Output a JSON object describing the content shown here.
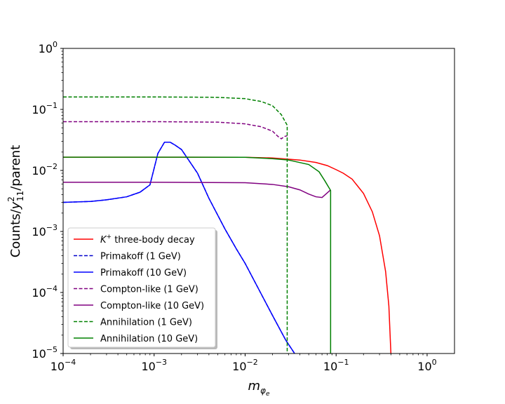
{
  "chart_data": {
    "type": "line",
    "xscale": "log",
    "yscale": "log",
    "xlim": [
      0.0001,
      2
    ],
    "ylim": [
      1e-05,
      1
    ],
    "xlabel": "m_{φ_e}",
    "ylabel": "Counts/y²₁₁/parent",
    "x_ticks": [
      {
        "value": 0.0001,
        "base": "10",
        "exp": "−4"
      },
      {
        "value": 0.001,
        "base": "10",
        "exp": "−3"
      },
      {
        "value": 0.01,
        "base": "10",
        "exp": "−2"
      },
      {
        "value": 0.1,
        "base": "10",
        "exp": "−1"
      },
      {
        "value": 1,
        "base": "10",
        "exp": "0"
      }
    ],
    "y_ticks": [
      {
        "value": 1e-05,
        "base": "10",
        "exp": "−5"
      },
      {
        "value": 0.0001,
        "base": "10",
        "exp": "−4"
      },
      {
        "value": 0.001,
        "base": "10",
        "exp": "−3"
      },
      {
        "value": 0.01,
        "base": "10",
        "exp": "−2"
      },
      {
        "value": 0.1,
        "base": "10",
        "exp": "−1"
      },
      {
        "value": 1,
        "base": "10",
        "exp": "0"
      }
    ],
    "grid": false,
    "legend_position": "lower-left",
    "series": [
      {
        "name": "K⁺ three-body decay",
        "name_parts": [
          "K",
          "+",
          " three-body decay"
        ],
        "color": "#ff0000",
        "dash": "solid",
        "points": [
          [
            0.0001,
            0.0165
          ],
          [
            0.001,
            0.0165
          ],
          [
            0.01,
            0.0164
          ],
          [
            0.02,
            0.016
          ],
          [
            0.04,
            0.0148
          ],
          [
            0.06,
            0.0135
          ],
          [
            0.08,
            0.012
          ],
          [
            0.1,
            0.0103
          ],
          [
            0.12,
            0.009
          ],
          [
            0.15,
            0.0072
          ],
          [
            0.2,
            0.0042
          ],
          [
            0.25,
            0.0021
          ],
          [
            0.3,
            0.00085
          ],
          [
            0.35,
            0.00022
          ],
          [
            0.38,
            6e-05
          ],
          [
            0.4,
            1e-05
          ]
        ]
      },
      {
        "name": "Primakoff (1 GeV)",
        "color": "#0000cc",
        "dash": "dashed",
        "points": [
          [
            0.0001,
            0.003
          ],
          [
            0.0002,
            0.0031
          ],
          [
            0.0003,
            0.0033
          ],
          [
            0.0005,
            0.0037
          ],
          [
            0.0007,
            0.0044
          ],
          [
            0.0009,
            0.0058
          ],
          [
            0.0011,
            0.019
          ],
          [
            0.0013,
            0.029
          ],
          [
            0.0015,
            0.029
          ],
          [
            0.0017,
            0.026
          ],
          [
            0.002,
            0.022
          ],
          [
            0.003,
            0.009
          ],
          [
            0.004,
            0.0035
          ],
          [
            0.006,
            0.0011
          ],
          [
            0.008,
            0.00052
          ],
          [
            0.01,
            0.0003
          ],
          [
            0.015,
            9.5e-05
          ],
          [
            0.02,
            4.2e-05
          ],
          [
            0.028,
            1.65e-05
          ],
          [
            0.035,
            1e-05
          ]
        ]
      },
      {
        "name": "Primakoff (10 GeV)",
        "color": "#0000ff",
        "dash": "solid",
        "points": [
          [
            0.0001,
            0.003
          ],
          [
            0.0002,
            0.0031
          ],
          [
            0.0003,
            0.0033
          ],
          [
            0.0005,
            0.0037
          ],
          [
            0.0007,
            0.0044
          ],
          [
            0.0009,
            0.0058
          ],
          [
            0.0011,
            0.019
          ],
          [
            0.0013,
            0.029
          ],
          [
            0.0015,
            0.029
          ],
          [
            0.0017,
            0.026
          ],
          [
            0.002,
            0.022
          ],
          [
            0.003,
            0.009
          ],
          [
            0.004,
            0.0035
          ],
          [
            0.006,
            0.0011
          ],
          [
            0.008,
            0.00052
          ],
          [
            0.01,
            0.0003
          ],
          [
            0.015,
            9.5e-05
          ],
          [
            0.02,
            4.2e-05
          ],
          [
            0.028,
            1.65e-05
          ],
          [
            0.035,
            1e-05
          ]
        ]
      },
      {
        "name": "Compton-like (1 GeV)",
        "color": "#800080",
        "dash": "dashed",
        "points": [
          [
            0.0001,
            0.063
          ],
          [
            0.001,
            0.063
          ],
          [
            0.005,
            0.0618
          ],
          [
            0.01,
            0.058
          ],
          [
            0.015,
            0.052
          ],
          [
            0.02,
            0.044
          ],
          [
            0.023,
            0.036
          ],
          [
            0.025,
            0.033
          ],
          [
            0.027,
            0.036
          ],
          [
            0.029,
            0.037
          ]
        ]
      },
      {
        "name": "Compton-like (10 GeV)",
        "color": "#800080",
        "dash": "solid",
        "points": [
          [
            0.0001,
            0.0064
          ],
          [
            0.001,
            0.0064
          ],
          [
            0.01,
            0.0063
          ],
          [
            0.02,
            0.0059
          ],
          [
            0.03,
            0.0054
          ],
          [
            0.04,
            0.0048
          ],
          [
            0.05,
            0.0041
          ],
          [
            0.06,
            0.0037
          ],
          [
            0.07,
            0.0036
          ],
          [
            0.08,
            0.0043
          ],
          [
            0.087,
            0.0048
          ]
        ]
      },
      {
        "name": "Annihilation (1 GeV)",
        "color": "#008000",
        "dash": "dashed",
        "points": [
          [
            0.0001,
            0.16
          ],
          [
            0.001,
            0.16
          ],
          [
            0.005,
            0.158
          ],
          [
            0.01,
            0.15
          ],
          [
            0.015,
            0.135
          ],
          [
            0.02,
            0.115
          ],
          [
            0.025,
            0.082
          ],
          [
            0.029,
            0.055
          ],
          [
            0.029,
            1e-05
          ]
        ]
      },
      {
        "name": "Annihilation (10 GeV)",
        "color": "#008000",
        "dash": "solid",
        "points": [
          [
            0.0001,
            0.0165
          ],
          [
            0.001,
            0.0165
          ],
          [
            0.01,
            0.0164
          ],
          [
            0.02,
            0.0156
          ],
          [
            0.03,
            0.0148
          ],
          [
            0.05,
            0.0125
          ],
          [
            0.065,
            0.0095
          ],
          [
            0.075,
            0.0068
          ],
          [
            0.087,
            0.0047
          ],
          [
            0.087,
            1e-05
          ]
        ]
      }
    ]
  }
}
